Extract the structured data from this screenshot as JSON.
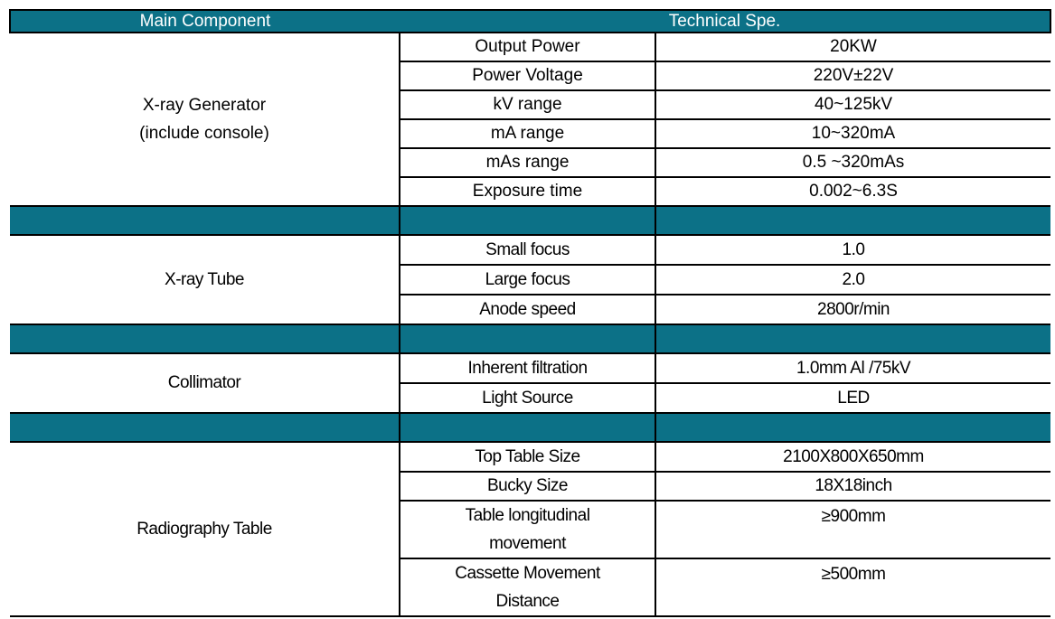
{
  "table": {
    "accent_color": "#0c7187",
    "border_color": "#000000",
    "header": {
      "main_component": "Main Component",
      "technical_spec": "Technical Spe."
    },
    "sections": [
      {
        "component_lines": [
          "X-ray Generator",
          "(include console)"
        ],
        "rows": [
          {
            "param": "Output Power",
            "value": "20KW"
          },
          {
            "param": "Power Voltage",
            "value": "220V±22V"
          },
          {
            "param": "kV range",
            "value": "40~125kV"
          },
          {
            "param": "mA range",
            "value": "10~320mA"
          },
          {
            "param": "mAs range",
            "value": "0.5 ~320mAs"
          },
          {
            "param": "Exposure time",
            "value": "0.002~6.3S"
          }
        ]
      },
      {
        "component_lines": [
          "X-ray Tube"
        ],
        "rows": [
          {
            "param": "Small focus",
            "value": "1.0"
          },
          {
            "param": "Large focus",
            "value": "2.0"
          },
          {
            "param": "Anode speed",
            "value": "2800r/min"
          }
        ]
      },
      {
        "component_lines": [
          "Collimator"
        ],
        "rows": [
          {
            "param": "Inherent filtration",
            "value": "1.0mm Al /75kV"
          },
          {
            "param": "Light Source",
            "value": "LED"
          }
        ]
      },
      {
        "component_lines": [
          "Radiography Table"
        ],
        "rows": [
          {
            "param": "Top Table Size",
            "value": "2100X800X650mm"
          },
          {
            "param": "Bucky Size",
            "value": "18X18inch"
          },
          {
            "param_lines": [
              "Table longitudinal",
              "movement"
            ],
            "value": "≥900mm"
          },
          {
            "param_lines": [
              "Cassette Movement",
              "Distance"
            ],
            "value": "≥500mm"
          }
        ]
      }
    ]
  }
}
